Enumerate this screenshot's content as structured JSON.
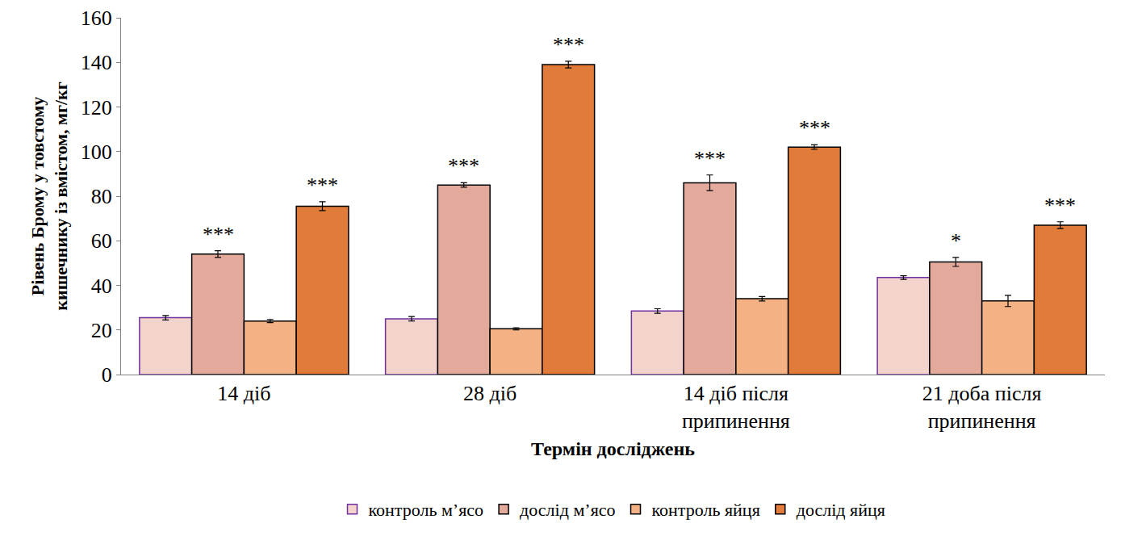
{
  "chart_data": {
    "type": "bar",
    "x_label": "Термін досліджень",
    "y_label": "Рівень Брому у товстому кишечнику із вмістом, мг/кг",
    "categories": [
      "14 діб",
      "28 діб",
      "14 діб після припинення",
      "21 доба після припинення"
    ],
    "series": [
      {
        "name": "контроль м’ясо",
        "color": "#f2d4cc",
        "values": [
          25.5,
          25,
          28.5,
          43.5
        ],
        "errors": [
          1,
          1,
          1,
          0.8
        ]
      },
      {
        "name": "дослід м’ясо",
        "color": "#e3aa9c",
        "values": [
          54,
          85,
          86,
          50.5
        ],
        "errors": [
          1.5,
          1,
          3.5,
          2
        ],
        "significance": [
          "***",
          "***",
          "***",
          "*"
        ]
      },
      {
        "name": "контроль яйця",
        "color": "#f4b183",
        "values": [
          24,
          20.5,
          34,
          33
        ],
        "errors": [
          0.7,
          0.5,
          1,
          2.5
        ]
      },
      {
        "name": "дослід яйця",
        "color": "#e07b39",
        "values": [
          75.5,
          139,
          102,
          67
        ],
        "errors": [
          2,
          1.5,
          1,
          1.5
        ],
        "significance": [
          "***",
          "***",
          "***",
          "***"
        ]
      }
    ],
    "ylim": [
      0,
      160
    ],
    "yticks": [
      0,
      20,
      40,
      60,
      80,
      100,
      120,
      140,
      160
    ],
    "grid": false,
    "legend": "bottom"
  }
}
